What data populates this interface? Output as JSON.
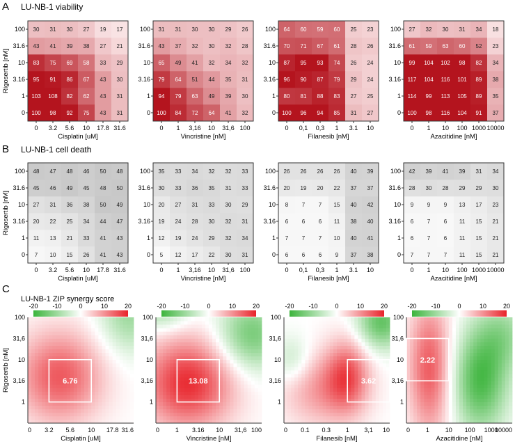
{
  "sections": [
    {
      "letter": "A",
      "title": "LU-NB-1 viability"
    },
    {
      "letter": "B",
      "title": "LU-NB-1 cell death"
    },
    {
      "letter": "C",
      "title": "LU-NB-1 ZIP synergy score"
    }
  ],
  "y_axis_label": "Rigosertib [nM]",
  "y_ticks_ab": [
    "0",
    "1",
    "3.16",
    "10",
    "31.6",
    "100"
  ],
  "y_ticks_c": [
    "1",
    "3,16",
    "10",
    "31,6",
    "100"
  ],
  "colorbar": {
    "ticks": [
      "-20",
      "-10",
      "0",
      "10",
      "20"
    ],
    "colors": {
      "neg": "#3cb43c",
      "zero": "#ffffff",
      "pos": "#e8232a"
    }
  },
  "colors": {
    "viability": "#b4141e",
    "death": "#8c8c8c"
  },
  "chart_data": [
    {
      "type": "heatmap",
      "section": "A",
      "metric": "viability",
      "drug": "Cisplatin",
      "xlabel": "Cisplatin [uM]",
      "x_ticks": [
        "0",
        "3.2",
        "5.6",
        "10",
        "17.8",
        "31.6"
      ],
      "y_ticks": [
        "0",
        "1",
        "3.16",
        "10",
        "31.6",
        "100"
      ],
      "values": [
        [
          100,
          98,
          92,
          75,
          43,
          31
        ],
        [
          103,
          108,
          82,
          62,
          43,
          31
        ],
        [
          95,
          91,
          86,
          67,
          43,
          30
        ],
        [
          83,
          75,
          69,
          58,
          33,
          29
        ],
        [
          43,
          41,
          39,
          38,
          27,
          21
        ],
        [
          30,
          31,
          30,
          27,
          19,
          17
        ]
      ]
    },
    {
      "type": "heatmap",
      "section": "A",
      "metric": "viability",
      "drug": "Vincristine",
      "xlabel": "Vincristine [nM]",
      "x_ticks": [
        "0",
        "1",
        "3,16",
        "10",
        "31,6",
        "100"
      ],
      "y_ticks": [
        "0",
        "1",
        "3.16",
        "10",
        "31.6",
        "100"
      ],
      "values": [
        [
          100,
          84,
          72,
          64,
          41,
          32
        ],
        [
          94,
          79,
          63,
          49,
          39,
          30
        ],
        [
          79,
          64,
          51,
          44,
          35,
          31
        ],
        [
          65,
          49,
          41,
          32,
          34,
          32
        ],
        [
          43,
          37,
          32,
          30,
          32,
          28
        ],
        [
          31,
          31,
          30,
          30,
          29,
          26
        ]
      ]
    },
    {
      "type": "heatmap",
      "section": "A",
      "metric": "viability",
      "drug": "Filanesib",
      "xlabel": "Filanesib [nM]",
      "x_ticks": [
        "0",
        "0,1",
        "0,3",
        "1",
        "3.1",
        "10"
      ],
      "y_ticks": [
        "0",
        "1",
        "3.16",
        "10",
        "31.6",
        "100"
      ],
      "values": [
        [
          100,
          96,
          94,
          85,
          31,
          27
        ],
        [
          80,
          81,
          88,
          83,
          27,
          25
        ],
        [
          96,
          90,
          87,
          79,
          29,
          24
        ],
        [
          87,
          95,
          93,
          74,
          26,
          24
        ],
        [
          70,
          71,
          67,
          61,
          28,
          26
        ],
        [
          64,
          60,
          59,
          60,
          25,
          23
        ]
      ]
    },
    {
      "type": "heatmap",
      "section": "A",
      "metric": "viability",
      "drug": "Azacitidine",
      "xlabel": "Azacitidine [nM]",
      "x_ticks": [
        "0",
        "1",
        "10",
        "100",
        "1000",
        "10000"
      ],
      "y_ticks": [
        "0",
        "1",
        "3.16",
        "10",
        "31.6",
        "100"
      ],
      "values": [
        [
          100,
          98,
          116,
          104,
          91,
          37
        ],
        [
          114,
          99,
          113,
          105,
          89,
          35
        ],
        [
          117,
          104,
          116,
          101,
          89,
          38
        ],
        [
          99,
          104,
          102,
          98,
          82,
          34
        ],
        [
          61,
          59,
          63,
          60,
          52,
          23
        ],
        [
          27,
          32,
          30,
          31,
          34,
          18
        ]
      ]
    },
    {
      "type": "heatmap",
      "section": "B",
      "metric": "cell death",
      "drug": "Cisplatin",
      "xlabel": "Cisplatin [uM]",
      "x_ticks": [
        "0",
        "3.2",
        "5.6",
        "10",
        "17.8",
        "31.6"
      ],
      "y_ticks": [
        "0",
        "1",
        "3.16",
        "10",
        "31.6",
        "100"
      ],
      "values": [
        [
          7,
          10,
          15,
          26,
          41,
          43
        ],
        [
          11,
          13,
          21,
          33,
          41,
          43
        ],
        [
          20,
          22,
          25,
          34,
          44,
          47
        ],
        [
          27,
          31,
          36,
          38,
          50,
          49
        ],
        [
          45,
          46,
          49,
          45,
          48,
          50
        ],
        [
          48,
          47,
          48,
          46,
          50,
          48
        ]
      ]
    },
    {
      "type": "heatmap",
      "section": "B",
      "metric": "cell death",
      "drug": "Vincristine",
      "xlabel": "Vincristine [nM]",
      "x_ticks": [
        "0",
        "1",
        "3,16",
        "10",
        "31,6",
        "100"
      ],
      "y_ticks": [
        "0",
        "1",
        "3.16",
        "10",
        "31.6",
        "100"
      ],
      "values": [
        [
          5,
          12,
          17,
          22,
          30,
          31
        ],
        [
          12,
          19,
          24,
          29,
          32,
          34
        ],
        [
          19,
          24,
          28,
          30,
          32,
          31
        ],
        [
          20,
          27,
          31,
          33,
          30,
          29
        ],
        [
          30,
          33,
          36,
          35,
          31,
          33
        ],
        [
          35,
          33,
          34,
          32,
          32,
          33
        ]
      ]
    },
    {
      "type": "heatmap",
      "section": "B",
      "metric": "cell death",
      "drug": "Filanesib",
      "xlabel": "Filanesib [nM]",
      "x_ticks": [
        "0",
        "0,1",
        "0,3",
        "1",
        "3.1",
        "10"
      ],
      "y_ticks": [
        "0",
        "1",
        "3.16",
        "10",
        "31.6",
        "100"
      ],
      "values": [
        [
          6,
          6,
          6,
          9,
          37,
          38
        ],
        [
          7,
          7,
          7,
          10,
          40,
          41
        ],
        [
          6,
          6,
          6,
          11,
          38,
          40
        ],
        [
          8,
          7,
          7,
          15,
          40,
          42
        ],
        [
          20,
          19,
          20,
          22,
          37,
          37
        ],
        [
          26,
          26,
          26,
          26,
          40,
          39
        ]
      ]
    },
    {
      "type": "heatmap",
      "section": "B",
      "metric": "cell death",
      "drug": "Azacitidine",
      "xlabel": "Azacitidine [nM]",
      "x_ticks": [
        "0",
        "1",
        "10",
        "100",
        "1000",
        "10000"
      ],
      "y_ticks": [
        "0",
        "1",
        "3.16",
        "10",
        "31.6",
        "100"
      ],
      "values": [
        [
          7,
          7,
          7,
          11,
          15,
          21
        ],
        [
          6,
          7,
          6,
          11,
          15,
          21
        ],
        [
          6,
          7,
          6,
          11,
          15,
          21
        ],
        [
          9,
          9,
          9,
          13,
          17,
          23
        ],
        [
          28,
          30,
          28,
          29,
          29,
          30
        ],
        [
          42,
          39,
          41,
          39,
          31,
          34
        ]
      ]
    },
    {
      "type": "heatmap",
      "section": "C",
      "metric": "ZIP synergy",
      "drug": "Cisplatin",
      "xlabel": "Cisplatin [uM]",
      "x_ticks": [
        "0",
        "3.2",
        "5.6",
        "10",
        "17.8",
        "31.6"
      ],
      "y_ticks": [
        "1",
        "3,16",
        "10",
        "31,6",
        "100"
      ],
      "zlim": [
        -20,
        20
      ],
      "box_score": "6.76",
      "box": {
        "x": [
          1,
          3
        ],
        "y": [
          1,
          3
        ]
      },
      "peaks": [
        {
          "x": 1.5,
          "y": 2.2,
          "v": 15,
          "sx": 1.4,
          "sy": 1.5
        },
        {
          "x": 4.8,
          "y": 5.2,
          "v": -10,
          "sx": 1.0,
          "sy": 1.3
        }
      ]
    },
    {
      "type": "heatmap",
      "section": "C",
      "metric": "ZIP synergy",
      "drug": "Vincristine",
      "xlabel": "Vincristine [nM]",
      "x_ticks": [
        "0",
        "1",
        "3.16",
        "10",
        "31,6",
        "100"
      ],
      "y_ticks": [
        "1",
        "3,16",
        "10",
        "31,6",
        "100"
      ],
      "zlim": [
        -20,
        20
      ],
      "box_score": "13.08",
      "box": {
        "x": [
          1,
          3
        ],
        "y": [
          1,
          3
        ]
      },
      "peaks": [
        {
          "x": 1.5,
          "y": 1.9,
          "v": 19,
          "sx": 1.5,
          "sy": 1.5
        },
        {
          "x": 4.5,
          "y": 4.2,
          "v": -14,
          "sx": 1.1,
          "sy": 1.2
        },
        {
          "x": 0.3,
          "y": 5.2,
          "v": -8,
          "sx": 0.9,
          "sy": 0.6
        }
      ]
    },
    {
      "type": "heatmap",
      "section": "C",
      "metric": "ZIP synergy",
      "drug": "Filanesib",
      "xlabel": "Filanesib [nM]",
      "x_ticks": [
        "0",
        "0.1",
        "0.3",
        "1",
        "3,1",
        "10"
      ],
      "y_ticks": [
        "1",
        "3,16",
        "10",
        "31,6",
        "100"
      ],
      "zlim": [
        -20,
        20
      ],
      "box_score": "3.62",
      "box": {
        "x": [
          3,
          5
        ],
        "y": [
          1,
          3
        ]
      },
      "peaks": [
        {
          "x": 3.0,
          "y": 2.3,
          "v": 13,
          "sx": 0.7,
          "sy": 1.2
        },
        {
          "x": 1.8,
          "y": 1.6,
          "v": 9,
          "sx": 1.3,
          "sy": 1.2
        },
        {
          "x": 4.6,
          "y": 4.8,
          "v": -16,
          "sx": 0.8,
          "sy": 0.9
        },
        {
          "x": 0.4,
          "y": 3.0,
          "v": -6,
          "sx": 0.6,
          "sy": 0.8
        }
      ]
    },
    {
      "type": "heatmap",
      "section": "C",
      "metric": "ZIP synergy",
      "drug": "Azacitidine",
      "xlabel": "Azacitidine [nM]",
      "x_ticks": [
        "0",
        "1",
        "10",
        "100",
        "1000",
        "10000"
      ],
      "y_ticks": [
        "1",
        "3,16",
        "10",
        "31,6",
        "100"
      ],
      "zlim": [
        -20,
        20
      ],
      "box_score": "2.22",
      "box": {
        "x": [
          0,
          2
        ],
        "y": [
          2,
          4
        ]
      },
      "peaks": [
        {
          "x": 1.1,
          "y": 2.6,
          "v": 15,
          "sx": 0.7,
          "sy": 2.2
        },
        {
          "x": 3.5,
          "y": 2.0,
          "v": -18,
          "sx": 0.9,
          "sy": 1.7
        },
        {
          "x": 4.6,
          "y": 4.2,
          "v": -9,
          "sx": 0.9,
          "sy": 1.2
        }
      ]
    }
  ]
}
